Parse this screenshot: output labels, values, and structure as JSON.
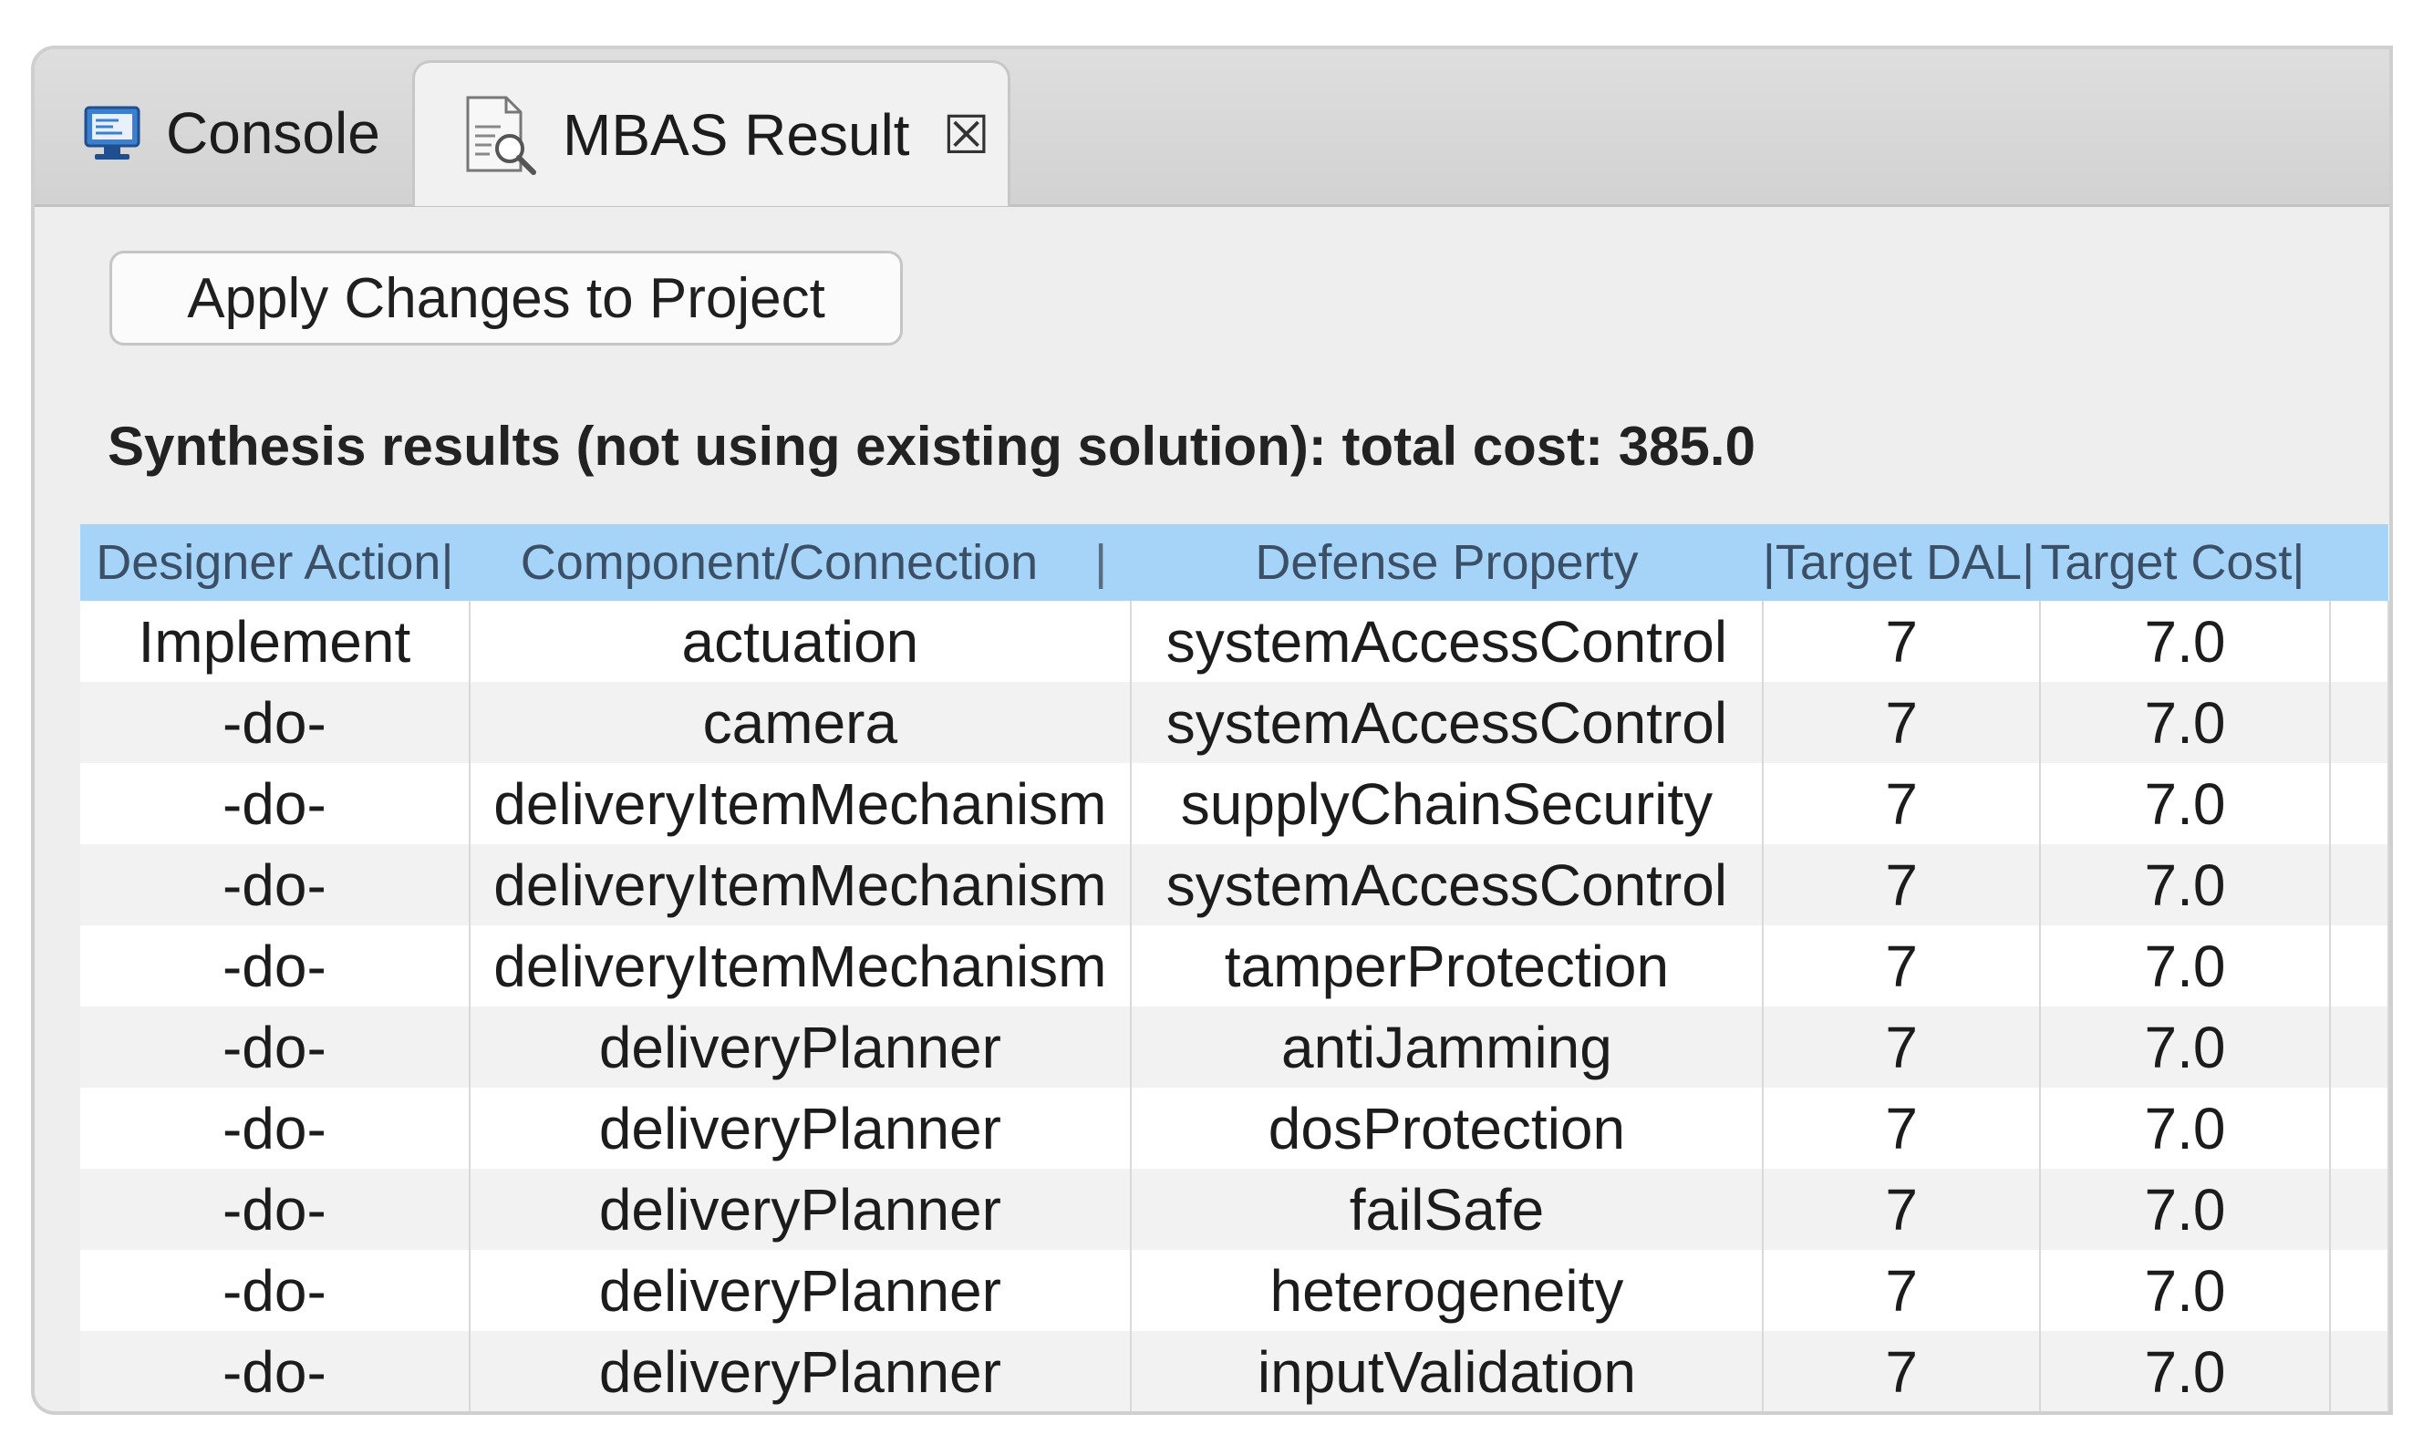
{
  "tabs": [
    {
      "label": "Console",
      "icon": "console-icon",
      "active": false
    },
    {
      "label": "MBAS Result",
      "icon": "result-report-icon",
      "active": true,
      "close_glyph": "☒"
    }
  ],
  "toolbar": {
    "apply_label": "Apply Changes to Project"
  },
  "summary": "Synthesis results (not using existing solution): total cost: 385.0",
  "table": {
    "headers": [
      "Designer Action|",
      "Component/Connection",
      "|",
      "Defense Property",
      "|Target DAL|",
      "Target Cost|"
    ],
    "rows": [
      {
        "action": "Implement",
        "component": "actuation",
        "property": "systemAccessControl",
        "dal": "7",
        "cost": "7.0"
      },
      {
        "action": "-do-",
        "component": "camera",
        "property": "systemAccessControl",
        "dal": "7",
        "cost": "7.0"
      },
      {
        "action": "-do-",
        "component": "deliveryItemMechanism",
        "property": "supplyChainSecurity",
        "dal": "7",
        "cost": "7.0"
      },
      {
        "action": "-do-",
        "component": "deliveryItemMechanism",
        "property": "systemAccessControl",
        "dal": "7",
        "cost": "7.0"
      },
      {
        "action": "-do-",
        "component": "deliveryItemMechanism",
        "property": "tamperProtection",
        "dal": "7",
        "cost": "7.0"
      },
      {
        "action": "-do-",
        "component": "deliveryPlanner",
        "property": "antiJamming",
        "dal": "7",
        "cost": "7.0"
      },
      {
        "action": "-do-",
        "component": "deliveryPlanner",
        "property": "dosProtection",
        "dal": "7",
        "cost": "7.0"
      },
      {
        "action": "-do-",
        "component": "deliveryPlanner",
        "property": "failSafe",
        "dal": "7",
        "cost": "7.0"
      },
      {
        "action": "-do-",
        "component": "deliveryPlanner",
        "property": "heterogeneity",
        "dal": "7",
        "cost": "7.0"
      },
      {
        "action": "-do-",
        "component": "deliveryPlanner",
        "property": "inputValidation",
        "dal": "7",
        "cost": "7.0"
      }
    ]
  },
  "colors": {
    "header_bg": "#a6d4f8",
    "stripe": "#f2f2f2",
    "panel_bg": "#eeeeee"
  }
}
